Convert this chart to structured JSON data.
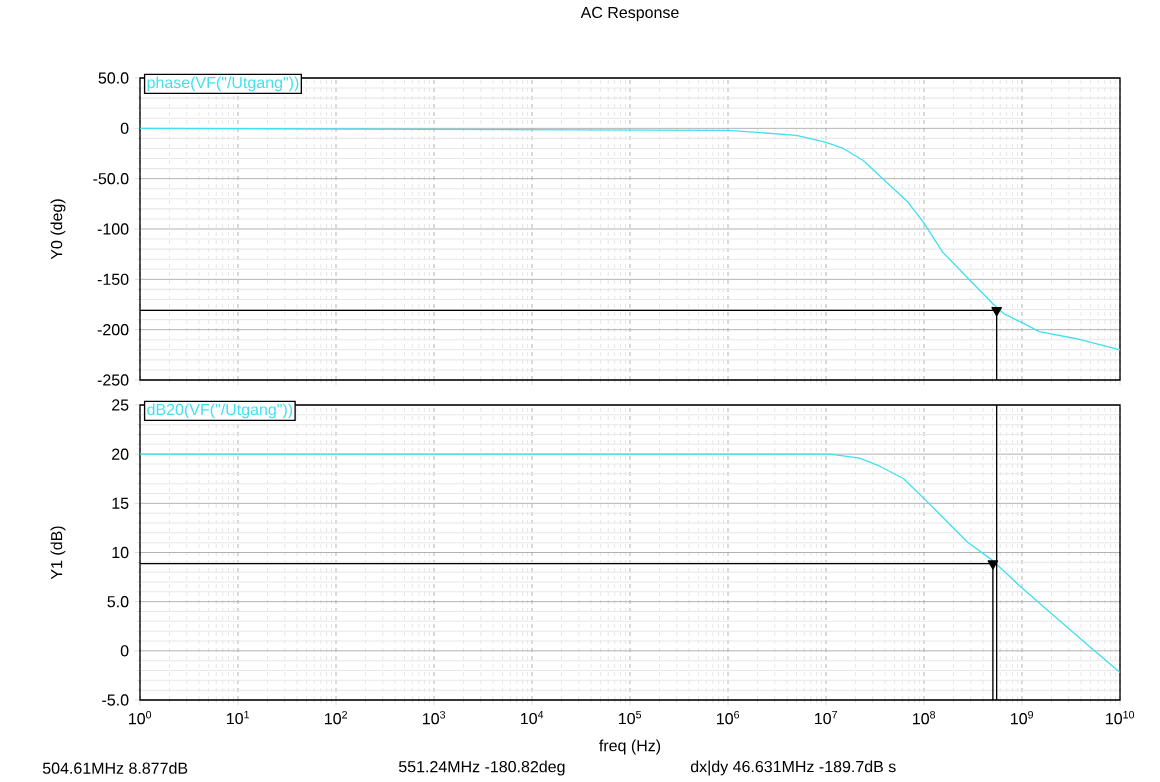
{
  "chart_data": [
    {
      "type": "line",
      "title": "AC Response",
      "ylabel": "Y0 (deg)",
      "log": "x",
      "grid": true,
      "tick_labels": "y",
      "xlim": [
        1,
        10000000000
      ],
      "ylim": [
        -250,
        50
      ],
      "xticks": [
        {
          "value": 1,
          "label": null
        },
        {
          "value": 10,
          "label": null
        },
        {
          "value": 100,
          "label": null
        },
        {
          "value": 1000,
          "label": null
        },
        {
          "value": 10000,
          "label": null
        },
        {
          "value": 100000,
          "label": null
        },
        {
          "value": 1000000,
          "label": null
        },
        {
          "value": 10000000,
          "label": null
        },
        {
          "value": 100000000,
          "label": null
        },
        {
          "value": 1000000000,
          "label": null
        },
        {
          "value": 10000000000,
          "label": null
        }
      ],
      "yticks": [
        {
          "value": 50,
          "label": "50.0"
        },
        0,
        {
          "value": -50,
          "label": "-50.0"
        },
        -100,
        -150,
        -200,
        -250
      ],
      "series": [
        {
          "name": "phase(VF(\"/Utgang\"))",
          "color": "#40e0f0",
          "x": [
            1,
            1000000,
            2000000,
            5000000,
            10000000,
            15000000,
            24000000,
            38000000,
            68000000,
            98000000,
            155000000,
            275000000,
            500000000,
            650000000,
            1000000000,
            1500000000,
            3600000000,
            10000000000
          ],
          "values": [
            0,
            -2,
            -4,
            -7,
            -14,
            -20,
            -32,
            -50,
            -73,
            -93,
            -123,
            -148,
            -174,
            -184,
            -193,
            -202,
            -209,
            -220
          ]
        },
        {
          "type": "line",
          "color": "#000000",
          "x": [
            1,
            551240000,
            551240000
          ],
          "values": [
            -180.82,
            -180.82,
            -250
          ]
        },
        {
          "type": "scatter",
          "color": "#000000",
          "marker": "triangle",
          "x": [
            551240000
          ],
          "values": [
            -180.82
          ]
        }
      ],
      "annotations": [
        "551.24MHz -180.82deg"
      ]
    },
    {
      "type": "line",
      "xlabel": "freq (Hz)",
      "ylabel": "Y1 (dB)",
      "log": "x",
      "grid": true,
      "xlim": [
        1,
        10000000000
      ],
      "ylim": [
        -5,
        25
      ],
      "xticks": [
        {
          "value": 1,
          "label": "10$^{0}$"
        },
        {
          "value": 10,
          "label": "10$^{1}$"
        },
        {
          "value": 100,
          "label": "10$^{2}$"
        },
        {
          "value": 1000,
          "label": "10$^{3}$"
        },
        {
          "value": 10000,
          "label": "10$^{4}$"
        },
        {
          "value": 100000,
          "label": "10$^{5}$"
        },
        {
          "value": 1000000,
          "label": "10$^{6}$"
        },
        {
          "value": 10000000,
          "label": "10$^{7}$"
        },
        {
          "value": 100000000,
          "label": "10$^{8}$"
        },
        {
          "value": 1000000000,
          "label": "10$^{9}$"
        },
        {
          "value": 10000000000,
          "label": "10$^{10}$"
        }
      ],
      "yticks": [
        25,
        20,
        15,
        10,
        {
          "value": 5,
          "label": "5.0"
        },
        0,
        {
          "value": -5,
          "label": "-5.0"
        }
      ],
      "series": [
        {
          "name": "dB20(VF(\"/Utgang\"))",
          "color": "#40e0f0",
          "x": [
            1,
            11000000,
            22000000,
            35000000,
            62000000,
            107000000,
            275000000,
            500000000,
            950000000,
            2100000000,
            5200000000,
            10000000000
          ],
          "values": [
            20,
            20,
            19.6,
            18.8,
            17.5,
            15.2,
            11.1,
            9.2,
            6.6,
            3.6,
            0.2,
            -2.2
          ]
        },
        {
          "type": "line",
          "color": "#000000",
          "x": [
            551240000,
            551240000
          ],
          "values": [
            25,
            -5
          ]
        },
        {
          "type": "line",
          "color": "#000000",
          "x": [
            1,
            504610000,
            504610000
          ],
          "values": [
            8.877,
            8.877,
            -5
          ]
        },
        {
          "type": "scatter",
          "color": "#000000",
          "marker": "triangle",
          "x": [
            504610000
          ],
          "values": [
            8.877
          ]
        }
      ],
      "annotations": [
        "504.61MHz 8.877dB",
        "dx|dy 46.631MHz -189.7dB s"
      ]
    }
  ]
}
